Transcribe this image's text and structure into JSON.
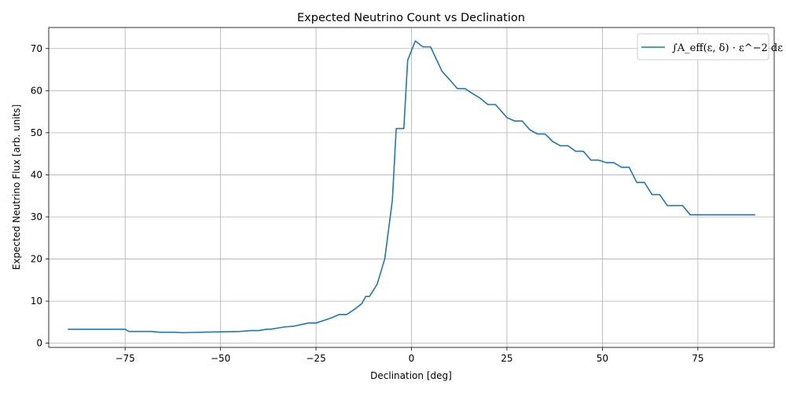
{
  "chart_data": {
    "type": "line",
    "title": "Expected Neutrino Count vs Declination",
    "xlabel": "Declination [deg]",
    "ylabel": "Expected Neutrino Flux [arb. units]",
    "xlim": [
      -95,
      95
    ],
    "ylim": [
      -1,
      75
    ],
    "xticks": [
      -75,
      -50,
      -25,
      0,
      25,
      50,
      75
    ],
    "yticks": [
      0,
      10,
      20,
      30,
      40,
      50,
      60,
      70
    ],
    "grid": true,
    "legend_position": "top-right",
    "series": [
      {
        "name": "∫A_eff(ε, δ) · ε^−2 dε",
        "color": "#1f77b4",
        "x": [
          -90,
          -75,
          -74,
          -68,
          -66,
          -62,
          -60,
          -55,
          -50,
          -45,
          -42,
          -40,
          -38,
          -37,
          -35,
          -33,
          -31,
          -29,
          -27,
          -25,
          -23,
          -21,
          -19,
          -17,
          -15,
          -13,
          -12,
          -11,
          -9,
          -7,
          -5,
          -4,
          -2,
          -1,
          1,
          3,
          5,
          8,
          10,
          12,
          14,
          16,
          18,
          20,
          22,
          25,
          27,
          29,
          31,
          33,
          35,
          37,
          39,
          41,
          43,
          45,
          47,
          49,
          51,
          53,
          55,
          57,
          59,
          61,
          63,
          65,
          67,
          69,
          71,
          73,
          75,
          77,
          90
        ],
        "y": [
          3.3,
          3.3,
          2.8,
          2.8,
          2.6,
          2.6,
          2.5,
          2.6,
          2.7,
          2.8,
          3.0,
          3.0,
          3.3,
          3.3,
          3.6,
          3.9,
          4.0,
          4.4,
          4.8,
          4.8,
          5.4,
          6.0,
          6.8,
          6.8,
          8.0,
          9.4,
          11.1,
          11.1,
          14.0,
          20.0,
          34.0,
          51.0,
          51.0,
          67.2,
          71.8,
          70.4,
          70.4,
          64.6,
          62.6,
          60.5,
          60.5,
          59.3,
          58.2,
          56.7,
          56.7,
          53.6,
          52.8,
          52.8,
          50.7,
          49.7,
          49.7,
          47.9,
          46.9,
          46.9,
          45.6,
          45.6,
          43.5,
          43.5,
          42.9,
          42.9,
          41.8,
          41.8,
          38.2,
          38.2,
          35.3,
          35.3,
          32.7,
          32.7,
          32.7,
          30.5,
          30.5,
          30.5,
          30.5
        ]
      }
    ]
  }
}
